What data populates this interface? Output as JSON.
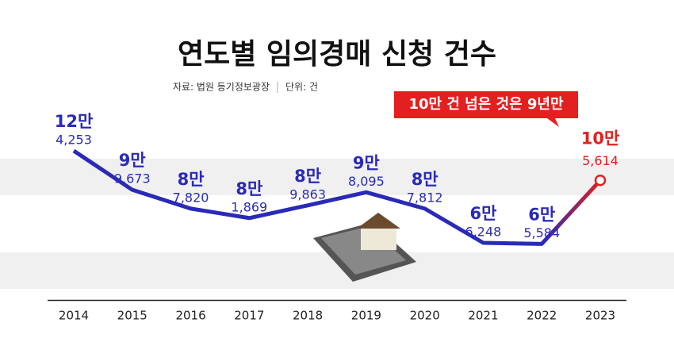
{
  "chart_data": {
    "type": "line",
    "title": "연도별 임의경매 신청 건수",
    "source": "자료: 법원 등기정보광장",
    "unit": "단위: 건",
    "annotation": "10만 건 넘은 것은 9년만",
    "categories": [
      "2014",
      "2015",
      "2016",
      "2017",
      "2018",
      "2019",
      "2020",
      "2021",
      "2022",
      "2023"
    ],
    "values": [
      124253,
      99673,
      87820,
      81869,
      89863,
      98095,
      87812,
      66248,
      65584,
      105614
    ],
    "value_labels": [
      [
        "12만",
        "4,253"
      ],
      [
        "9만",
        "9,673"
      ],
      [
        "8만",
        "7,820"
      ],
      [
        "8만",
        "1,869"
      ],
      [
        "8만",
        "9,863"
      ],
      [
        "9만",
        "8,095"
      ],
      [
        "8만",
        "7,812"
      ],
      [
        "6만",
        "6,248"
      ],
      [
        "6만",
        "5,584"
      ],
      [
        "10만",
        "5,614"
      ]
    ],
    "color": "#2a2ab8",
    "highlight_color": "#e3201f",
    "ylim": [
      30000,
      140000
    ]
  }
}
